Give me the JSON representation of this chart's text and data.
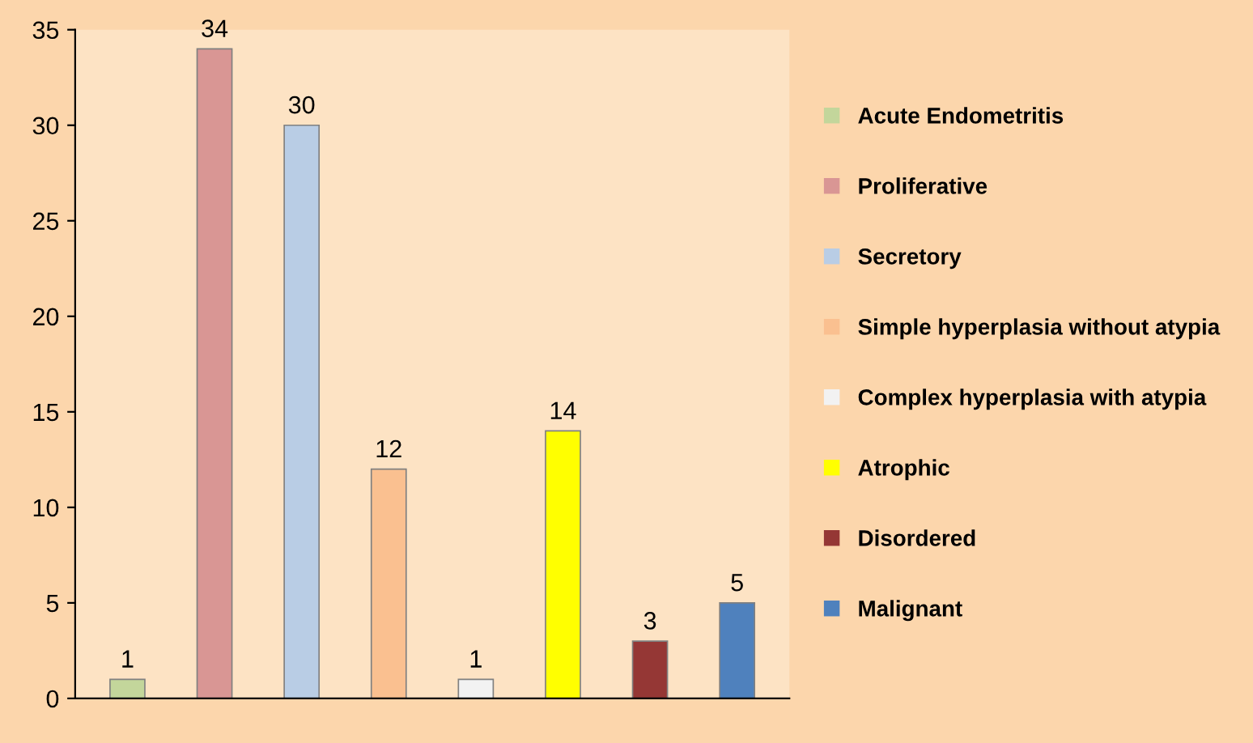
{
  "chart_data": {
    "type": "bar",
    "categories": [
      null,
      null,
      null,
      null,
      null,
      null,
      null,
      null
    ],
    "series": [
      {
        "name": "Acute Endometritis",
        "color": "#c3d69b",
        "values": [
          1,
          null,
          null,
          null,
          null,
          null,
          null,
          null
        ]
      },
      {
        "name": "Proliferative",
        "color": "#d99694",
        "values": [
          null,
          34,
          null,
          null,
          null,
          null,
          null,
          null
        ]
      },
      {
        "name": "Secretory",
        "color": "#b9cde5",
        "values": [
          null,
          null,
          30,
          null,
          null,
          null,
          null,
          null
        ]
      },
      {
        "name": "Simple hyperplasia without atypia",
        "color": "#fac090",
        "values": [
          null,
          null,
          null,
          12,
          null,
          null,
          null,
          null
        ]
      },
      {
        "name": "Complex hyperplasia with atypia",
        "color": "#f2f2f2",
        "values": [
          null,
          null,
          null,
          null,
          1,
          null,
          null,
          null
        ]
      },
      {
        "name": "Atrophic",
        "color": "#ffff00",
        "values": [
          null,
          null,
          null,
          null,
          null,
          14,
          null,
          null
        ]
      },
      {
        "name": "Disordered",
        "color": "#953735",
        "values": [
          null,
          null,
          null,
          null,
          null,
          null,
          3,
          null
        ]
      },
      {
        "name": "Malignant",
        "color": "#4f81bd",
        "values": [
          null,
          null,
          null,
          null,
          null,
          null,
          null,
          5
        ]
      }
    ],
    "ylim": [
      0,
      35
    ],
    "yticks": [
      0,
      5,
      10,
      15,
      20,
      25,
      30,
      35
    ],
    "grid": false,
    "legend": "right",
    "data_labels": true
  }
}
